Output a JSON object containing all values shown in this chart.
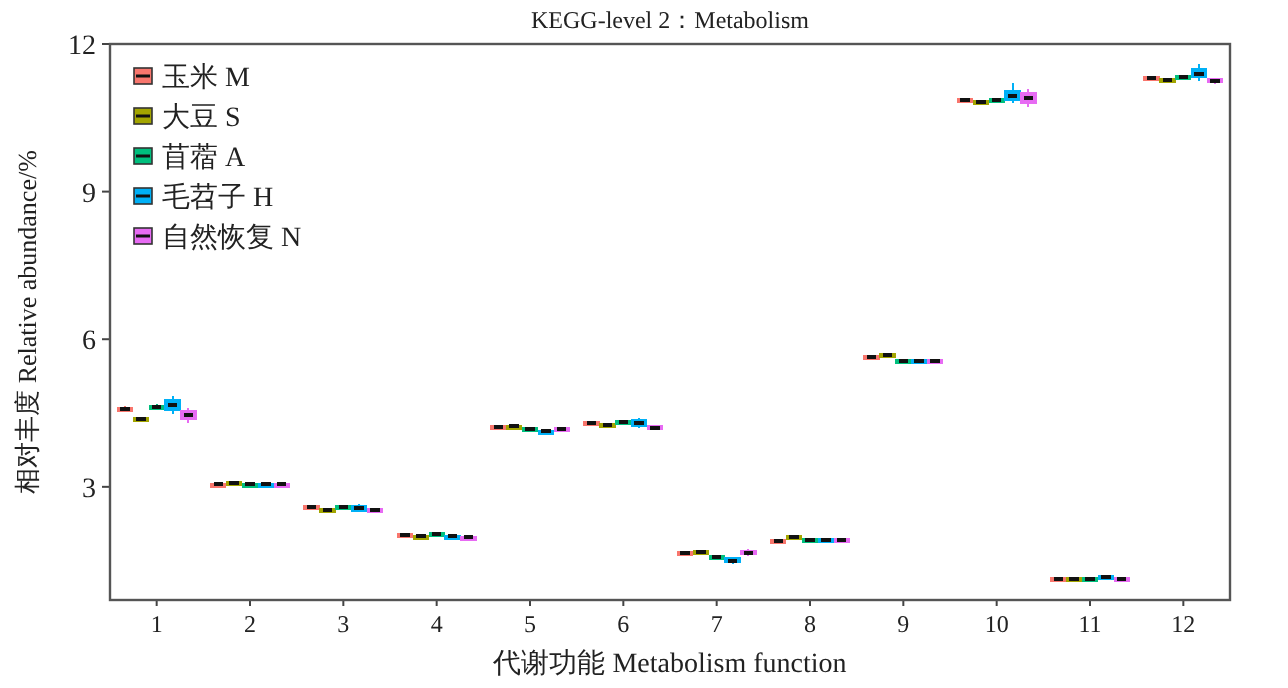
{
  "chart_data": {
    "type": "box",
    "title": "KEGG-level 2：Metabolism",
    "xlabel": "代谢功能 Metabolism function",
    "ylabel": "相对丰度 Relative abundance/%",
    "categories": [
      "1",
      "2",
      "3",
      "4",
      "5",
      "6",
      "7",
      "8",
      "9",
      "10",
      "11",
      "12"
    ],
    "ylim": [
      0.7,
      12
    ],
    "yticks": [
      3,
      6,
      9,
      12
    ],
    "grid": false,
    "legend": "top left",
    "series": [
      {
        "name": "玉米 M",
        "color": "#f8766d",
        "boxes": [
          {
            "low": 4.52,
            "q1": 4.55,
            "median": 4.58,
            "q3": 4.61,
            "high": 4.64
          },
          {
            "low": 3.02,
            "q1": 3.04,
            "median": 3.05,
            "q3": 3.06,
            "high": 3.08
          },
          {
            "low": 2.56,
            "q1": 2.58,
            "median": 2.6,
            "q3": 2.62,
            "high": 2.64
          },
          {
            "low": 2.0,
            "q1": 2.02,
            "median": 2.03,
            "q3": 2.04,
            "high": 2.06
          },
          {
            "low": 4.19,
            "q1": 4.21,
            "median": 4.22,
            "q3": 4.23,
            "high": 4.25
          },
          {
            "low": 4.26,
            "q1": 4.28,
            "median": 4.3,
            "q3": 4.32,
            "high": 4.34
          },
          {
            "low": 1.62,
            "q1": 1.64,
            "median": 1.66,
            "q3": 1.68,
            "high": 1.7
          },
          {
            "low": 1.87,
            "q1": 1.89,
            "median": 1.9,
            "q3": 1.91,
            "high": 1.93
          },
          {
            "low": 5.61,
            "q1": 5.63,
            "median": 5.64,
            "q3": 5.65,
            "high": 5.67
          },
          {
            "low": 10.82,
            "q1": 10.84,
            "median": 10.86,
            "q3": 10.88,
            "high": 10.9
          },
          {
            "low": 1.1,
            "q1": 1.12,
            "median": 1.13,
            "q3": 1.14,
            "high": 1.16
          },
          {
            "low": 11.26,
            "q1": 11.28,
            "median": 11.3,
            "q3": 11.32,
            "high": 11.34
          }
        ]
      },
      {
        "name": "大豆 S",
        "color": "#a3a500",
        "boxes": [
          {
            "low": 4.35,
            "q1": 4.37,
            "median": 4.38,
            "q3": 4.39,
            "high": 4.41
          },
          {
            "low": 3.05,
            "q1": 3.07,
            "median": 3.08,
            "q3": 3.09,
            "high": 3.11
          },
          {
            "low": 2.48,
            "q1": 2.5,
            "median": 2.52,
            "q3": 2.54,
            "high": 2.56
          },
          {
            "low": 1.97,
            "q1": 1.99,
            "median": 2.0,
            "q3": 2.01,
            "high": 2.03
          },
          {
            "low": 4.2,
            "q1": 4.22,
            "median": 4.23,
            "q3": 4.24,
            "high": 4.26
          },
          {
            "low": 4.22,
            "q1": 4.24,
            "median": 4.26,
            "q3": 4.28,
            "high": 4.3
          },
          {
            "low": 1.64,
            "q1": 1.66,
            "median": 1.68,
            "q3": 1.7,
            "high": 1.72
          },
          {
            "low": 1.94,
            "q1": 1.96,
            "median": 1.98,
            "q3": 2.0,
            "high": 2.02
          },
          {
            "low": 5.64,
            "q1": 5.66,
            "median": 5.68,
            "q3": 5.7,
            "high": 5.72
          },
          {
            "low": 10.79,
            "q1": 10.81,
            "median": 10.83,
            "q3": 10.85,
            "high": 10.87
          },
          {
            "low": 1.1,
            "q1": 1.12,
            "median": 1.13,
            "q3": 1.14,
            "high": 1.16
          },
          {
            "low": 11.23,
            "q1": 11.25,
            "median": 11.27,
            "q3": 11.29,
            "high": 11.31
          }
        ]
      },
      {
        "name": "苜蓿 A",
        "color": "#00bf7d",
        "boxes": [
          {
            "low": 4.56,
            "q1": 4.59,
            "median": 4.62,
            "q3": 4.65,
            "high": 4.68
          },
          {
            "low": 3.02,
            "q1": 3.04,
            "median": 3.05,
            "q3": 3.06,
            "high": 3.08
          },
          {
            "low": 2.56,
            "q1": 2.58,
            "median": 2.6,
            "q3": 2.62,
            "high": 2.64
          },
          {
            "low": 2.02,
            "q1": 2.04,
            "median": 2.05,
            "q3": 2.06,
            "high": 2.08
          },
          {
            "low": 4.15,
            "q1": 4.17,
            "median": 4.18,
            "q3": 4.19,
            "high": 4.21
          },
          {
            "low": 4.28,
            "q1": 4.3,
            "median": 4.32,
            "q3": 4.34,
            "high": 4.36
          },
          {
            "low": 1.54,
            "q1": 1.56,
            "median": 1.58,
            "q3": 1.6,
            "high": 1.62
          },
          {
            "low": 1.89,
            "q1": 1.91,
            "median": 1.92,
            "q3": 1.93,
            "high": 1.95
          },
          {
            "low": 5.51,
            "q1": 5.53,
            "median": 5.55,
            "q3": 5.57,
            "high": 5.59
          },
          {
            "low": 10.82,
            "q1": 10.84,
            "median": 10.86,
            "q3": 10.88,
            "high": 10.9
          },
          {
            "low": 1.1,
            "q1": 1.12,
            "median": 1.13,
            "q3": 1.14,
            "high": 1.16
          },
          {
            "low": 11.28,
            "q1": 11.3,
            "median": 11.32,
            "q3": 11.34,
            "high": 11.36
          }
        ]
      },
      {
        "name": "毛苕子 H",
        "color": "#00b0f6",
        "boxes": [
          {
            "low": 4.48,
            "q1": 4.56,
            "median": 4.66,
            "q3": 4.76,
            "high": 4.84
          },
          {
            "low": 3.02,
            "q1": 3.04,
            "median": 3.05,
            "q3": 3.06,
            "high": 3.08
          },
          {
            "low": 2.48,
            "q1": 2.51,
            "median": 2.56,
            "q3": 2.61,
            "high": 2.65
          },
          {
            "low": 1.97,
            "q1": 1.99,
            "median": 2.0,
            "q3": 2.01,
            "high": 2.03
          },
          {
            "low": 4.1,
            "q1": 4.12,
            "median": 4.13,
            "q3": 4.14,
            "high": 4.16
          },
          {
            "low": 4.2,
            "q1": 4.24,
            "median": 4.3,
            "q3": 4.36,
            "high": 4.4
          },
          {
            "low": 1.44,
            "q1": 1.47,
            "median": 1.5,
            "q3": 1.55,
            "high": 1.58
          },
          {
            "low": 1.89,
            "q1": 1.91,
            "median": 1.92,
            "q3": 1.93,
            "high": 1.95
          },
          {
            "low": 5.52,
            "q1": 5.54,
            "median": 5.56,
            "q3": 5.58,
            "high": 5.6
          },
          {
            "low": 10.8,
            "q1": 10.87,
            "median": 10.95,
            "q3": 11.05,
            "high": 11.2
          },
          {
            "low": 1.12,
            "q1": 1.14,
            "median": 1.16,
            "q3": 1.18,
            "high": 1.2
          },
          {
            "low": 11.25,
            "q1": 11.33,
            "median": 11.4,
            "q3": 11.5,
            "high": 11.6
          }
        ]
      },
      {
        "name": "自然恢复 N",
        "color": "#e76bf3",
        "boxes": [
          {
            "low": 4.3,
            "q1": 4.38,
            "median": 4.46,
            "q3": 4.55,
            "high": 4.6
          },
          {
            "low": 3.02,
            "q1": 3.04,
            "median": 3.05,
            "q3": 3.06,
            "high": 3.08
          },
          {
            "low": 2.47,
            "q1": 2.49,
            "median": 2.52,
            "q3": 2.55,
            "high": 2.57
          },
          {
            "low": 1.95,
            "q1": 1.97,
            "median": 1.98,
            "q3": 1.99,
            "high": 2.01
          },
          {
            "low": 4.15,
            "q1": 4.17,
            "median": 4.18,
            "q3": 4.19,
            "high": 4.21
          },
          {
            "low": 4.15,
            "q1": 4.17,
            "median": 4.2,
            "q3": 4.23,
            "high": 4.25
          },
          {
            "low": 1.6,
            "q1": 1.63,
            "median": 1.66,
            "q3": 1.7,
            "high": 1.73
          },
          {
            "low": 1.89,
            "q1": 1.91,
            "median": 1.92,
            "q3": 1.93,
            "high": 1.95
          },
          {
            "low": 5.51,
            "q1": 5.53,
            "median": 5.55,
            "q3": 5.57,
            "high": 5.59
          },
          {
            "low": 10.72,
            "q1": 10.8,
            "median": 10.9,
            "q3": 11.0,
            "high": 11.08
          },
          {
            "low": 1.1,
            "q1": 1.12,
            "median": 1.13,
            "q3": 1.14,
            "high": 1.16
          },
          {
            "low": 11.19,
            "q1": 11.22,
            "median": 11.25,
            "q3": 11.28,
            "high": 11.31
          }
        ]
      }
    ]
  }
}
